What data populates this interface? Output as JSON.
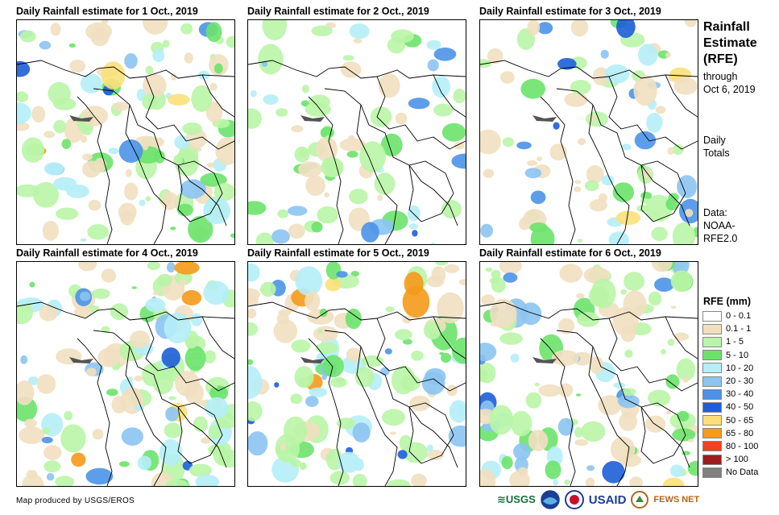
{
  "panels": [
    {
      "title": "Daily Rainfall estimate for 1 Oct., 2019",
      "seed": 11,
      "wet": 0.55
    },
    {
      "title": "Daily Rainfall estimate for 2 Oct., 2019",
      "seed": 23,
      "wet": 0.35
    },
    {
      "title": "Daily Rainfall estimate for 3 Oct., 2019",
      "seed": 37,
      "wet": 0.4
    },
    {
      "title": "Daily Rainfall estimate for 4 Oct., 2019",
      "seed": 41,
      "wet": 0.6
    },
    {
      "title": "Daily Rainfall estimate for 5 Oct., 2019",
      "seed": 53,
      "wet": 0.55
    },
    {
      "title": "Daily Rainfall estimate for 6 Oct., 2019",
      "seed": 67,
      "wet": 0.58
    }
  ],
  "side": {
    "title_lines": [
      "Rainfall",
      "Estimate",
      "(RFE)"
    ],
    "through_lines": [
      "through",
      "Oct 6, 2019"
    ],
    "daily_lines": [
      "Daily",
      "Totals"
    ],
    "data_lines": [
      "Data:",
      "NOAA-",
      "RFE2.0"
    ]
  },
  "legend": {
    "title": "RFE (mm)",
    "items": [
      {
        "label": "0 - 0.1",
        "color": "#ffffff"
      },
      {
        "label": "0.1 - 1",
        "color": "#f1dfc0"
      },
      {
        "label": "1 - 5",
        "color": "#b9f5a6"
      },
      {
        "label": "5 - 10",
        "color": "#6be36b"
      },
      {
        "label": "10 - 20",
        "color": "#b5eef7"
      },
      {
        "label": "20 - 30",
        "color": "#8cc4f2"
      },
      {
        "label": "30 - 40",
        "color": "#4b93e8"
      },
      {
        "label": "40 - 50",
        "color": "#1d5ed9"
      },
      {
        "label": "50 - 65",
        "color": "#fbe07a"
      },
      {
        "label": "65 - 80",
        "color": "#f59a1a"
      },
      {
        "label": "80 - 100",
        "color": "#f0421c"
      },
      {
        "label": "> 100",
        "color": "#a01c1c"
      },
      {
        "label": "No Data",
        "color": "#808080"
      }
    ]
  },
  "footer": "Map produced by USGS/EROS",
  "logos": {
    "usgs": "≋USGS",
    "usaid": "USAID",
    "fews": "FEWS NET"
  }
}
